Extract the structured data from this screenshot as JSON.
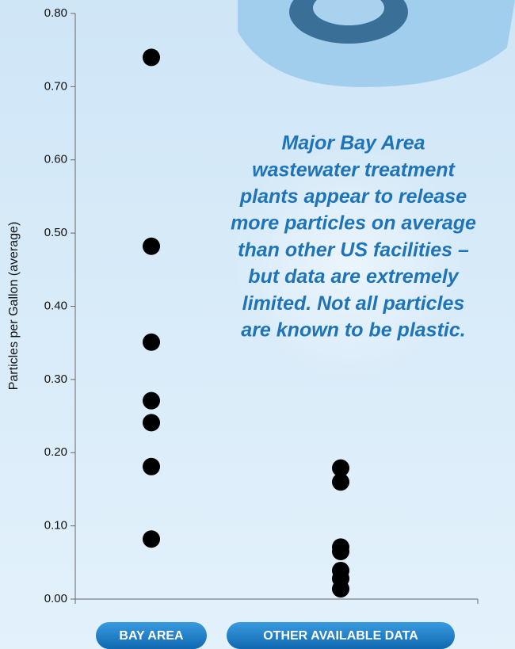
{
  "chart_data": {
    "type": "strip",
    "y_label": "Particles per Gallon (average)",
    "annotation": [
      "Major Bay Area",
      "wastewater treatment",
      "plants appear to release",
      "more particles on average",
      "than other US facilities –",
      "but data are extremely",
      "limited. Not all particles",
      "are known to be plastic."
    ],
    "categories": [
      "BAY AREA",
      "OTHER AVAILABLE DATA"
    ],
    "values": [
      [
        0.74,
        0.482,
        0.351,
        0.271,
        0.241,
        0.181,
        0.082
      ],
      [
        0.179,
        0.16,
        0.071,
        0.065,
        0.039,
        0.028,
        0.014
      ]
    ],
    "color": "#000000",
    "ylim": [
      0,
      0.8
    ],
    "yticks": [
      {
        "value": 0,
        "label": "0.00"
      },
      {
        "value": 0.1,
        "label": "0.10"
      },
      {
        "value": 0.2,
        "label": "0.20"
      },
      {
        "value": 0.3,
        "label": "0.30"
      },
      {
        "value": 0.4,
        "label": "0.40"
      },
      {
        "value": 0.5,
        "label": "0.50"
      },
      {
        "value": 0.6,
        "label": "0.60"
      },
      {
        "value": 0.7,
        "label": "0.70"
      },
      {
        "value": 0.8,
        "label": "0.80"
      }
    ]
  }
}
